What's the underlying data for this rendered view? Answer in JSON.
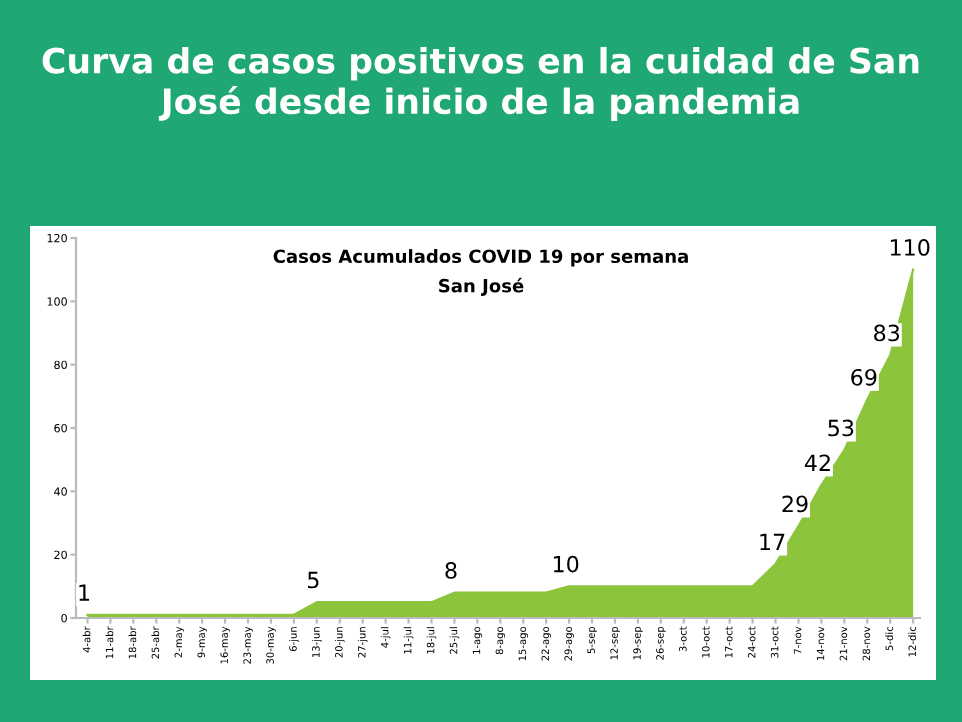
{
  "chart_data": {
    "type": "area",
    "title": "Curva de casos positivos en la cuidad de San José desde inicio de la pandemia",
    "subtitle": "Casos Acumulados COVID 19 por semana",
    "annotations": [
      "San José"
    ],
    "categories": [
      "4-abr",
      "11-abr",
      "18-abr",
      "25-abr",
      "2-may",
      "9-may",
      "16-may",
      "23-may",
      "30-may",
      "6-jun",
      "13-jun",
      "20-jun",
      "27-jun",
      "4-jul",
      "11-jul",
      "18-jul",
      "25-jul",
      "1-ago",
      "8-ago",
      "15-ago",
      "22-ago",
      "29-ago",
      "5-sep",
      "12-sep",
      "19-sep",
      "26-sep",
      "3-oct",
      "10-oct",
      "17-oct",
      "24-oct",
      "31-oct",
      "7-nov",
      "14-nov",
      "21-nov",
      "28-nov",
      "5-dic",
      "12-dic"
    ],
    "values": [
      1,
      1,
      1,
      1,
      1,
      1,
      1,
      1,
      1,
      1,
      5,
      5,
      5,
      5,
      5,
      5,
      8,
      8,
      8,
      8,
      8,
      10,
      10,
      10,
      10,
      10,
      10,
      10,
      10,
      10,
      17,
      29,
      42,
      53,
      69,
      83,
      110
    ],
    "value_labels": [
      "1",
      null,
      null,
      null,
      null,
      null,
      null,
      null,
      null,
      null,
      "5",
      null,
      null,
      null,
      null,
      null,
      "8",
      null,
      null,
      null,
      null,
      "10",
      null,
      null,
      null,
      null,
      null,
      null,
      null,
      null,
      "17",
      "29",
      "42",
      "53",
      "69",
      "83",
      "110"
    ],
    "color": "#8cc43c",
    "ylim": [
      0,
      120
    ],
    "yticks": [
      0,
      20,
      40,
      60,
      80,
      100,
      120
    ],
    "grid": false,
    "legend": false
  }
}
